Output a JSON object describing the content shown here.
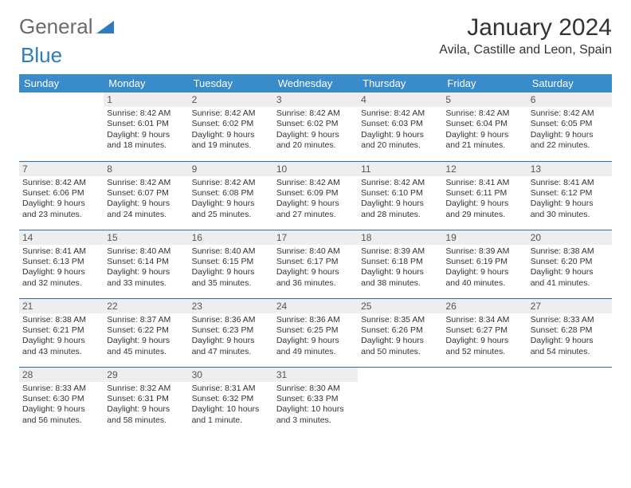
{
  "brand": {
    "part1": "General",
    "part2": "Blue"
  },
  "title": "January 2024",
  "location": "Avila, Castille and Leon, Spain",
  "colors": {
    "header_bg": "#3a8bca",
    "header_text": "#ffffff",
    "daynum_bg": "#eeeeee",
    "row_divider": "#2d6da3",
    "body_text": "#333333",
    "logo_gray": "#6b6b6b",
    "logo_blue": "#2d7cc0",
    "page_bg": "#ffffff"
  },
  "weekdays": [
    "Sunday",
    "Monday",
    "Tuesday",
    "Wednesday",
    "Thursday",
    "Friday",
    "Saturday"
  ],
  "weeks": [
    [
      null,
      {
        "n": "1",
        "sr": "8:42 AM",
        "ss": "6:01 PM",
        "dl": "9 hours and 18 minutes."
      },
      {
        "n": "2",
        "sr": "8:42 AM",
        "ss": "6:02 PM",
        "dl": "9 hours and 19 minutes."
      },
      {
        "n": "3",
        "sr": "8:42 AM",
        "ss": "6:02 PM",
        "dl": "9 hours and 20 minutes."
      },
      {
        "n": "4",
        "sr": "8:42 AM",
        "ss": "6:03 PM",
        "dl": "9 hours and 20 minutes."
      },
      {
        "n": "5",
        "sr": "8:42 AM",
        "ss": "6:04 PM",
        "dl": "9 hours and 21 minutes."
      },
      {
        "n": "6",
        "sr": "8:42 AM",
        "ss": "6:05 PM",
        "dl": "9 hours and 22 minutes."
      }
    ],
    [
      {
        "n": "7",
        "sr": "8:42 AM",
        "ss": "6:06 PM",
        "dl": "9 hours and 23 minutes."
      },
      {
        "n": "8",
        "sr": "8:42 AM",
        "ss": "6:07 PM",
        "dl": "9 hours and 24 minutes."
      },
      {
        "n": "9",
        "sr": "8:42 AM",
        "ss": "6:08 PM",
        "dl": "9 hours and 25 minutes."
      },
      {
        "n": "10",
        "sr": "8:42 AM",
        "ss": "6:09 PM",
        "dl": "9 hours and 27 minutes."
      },
      {
        "n": "11",
        "sr": "8:42 AM",
        "ss": "6:10 PM",
        "dl": "9 hours and 28 minutes."
      },
      {
        "n": "12",
        "sr": "8:41 AM",
        "ss": "6:11 PM",
        "dl": "9 hours and 29 minutes."
      },
      {
        "n": "13",
        "sr": "8:41 AM",
        "ss": "6:12 PM",
        "dl": "9 hours and 30 minutes."
      }
    ],
    [
      {
        "n": "14",
        "sr": "8:41 AM",
        "ss": "6:13 PM",
        "dl": "9 hours and 32 minutes."
      },
      {
        "n": "15",
        "sr": "8:40 AM",
        "ss": "6:14 PM",
        "dl": "9 hours and 33 minutes."
      },
      {
        "n": "16",
        "sr": "8:40 AM",
        "ss": "6:15 PM",
        "dl": "9 hours and 35 minutes."
      },
      {
        "n": "17",
        "sr": "8:40 AM",
        "ss": "6:17 PM",
        "dl": "9 hours and 36 minutes."
      },
      {
        "n": "18",
        "sr": "8:39 AM",
        "ss": "6:18 PM",
        "dl": "9 hours and 38 minutes."
      },
      {
        "n": "19",
        "sr": "8:39 AM",
        "ss": "6:19 PM",
        "dl": "9 hours and 40 minutes."
      },
      {
        "n": "20",
        "sr": "8:38 AM",
        "ss": "6:20 PM",
        "dl": "9 hours and 41 minutes."
      }
    ],
    [
      {
        "n": "21",
        "sr": "8:38 AM",
        "ss": "6:21 PM",
        "dl": "9 hours and 43 minutes."
      },
      {
        "n": "22",
        "sr": "8:37 AM",
        "ss": "6:22 PM",
        "dl": "9 hours and 45 minutes."
      },
      {
        "n": "23",
        "sr": "8:36 AM",
        "ss": "6:23 PM",
        "dl": "9 hours and 47 minutes."
      },
      {
        "n": "24",
        "sr": "8:36 AM",
        "ss": "6:25 PM",
        "dl": "9 hours and 49 minutes."
      },
      {
        "n": "25",
        "sr": "8:35 AM",
        "ss": "6:26 PM",
        "dl": "9 hours and 50 minutes."
      },
      {
        "n": "26",
        "sr": "8:34 AM",
        "ss": "6:27 PM",
        "dl": "9 hours and 52 minutes."
      },
      {
        "n": "27",
        "sr": "8:33 AM",
        "ss": "6:28 PM",
        "dl": "9 hours and 54 minutes."
      }
    ],
    [
      {
        "n": "28",
        "sr": "8:33 AM",
        "ss": "6:30 PM",
        "dl": "9 hours and 56 minutes."
      },
      {
        "n": "29",
        "sr": "8:32 AM",
        "ss": "6:31 PM",
        "dl": "9 hours and 58 minutes."
      },
      {
        "n": "30",
        "sr": "8:31 AM",
        "ss": "6:32 PM",
        "dl": "10 hours and 1 minute."
      },
      {
        "n": "31",
        "sr": "8:30 AM",
        "ss": "6:33 PM",
        "dl": "10 hours and 3 minutes."
      },
      null,
      null,
      null
    ]
  ],
  "labels": {
    "sunrise": "Sunrise:",
    "sunset": "Sunset:",
    "daylight": "Daylight:"
  }
}
